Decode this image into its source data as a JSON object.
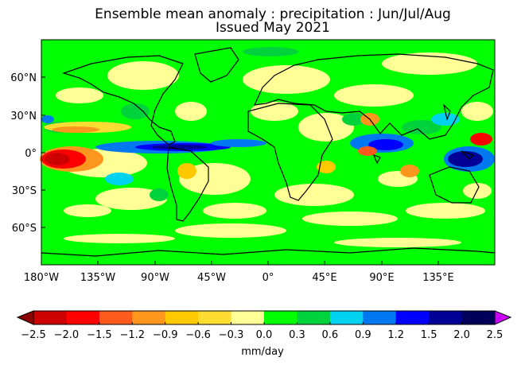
{
  "title": "Ensemble mean anomaly : precipitation : Jun/Jul/Aug",
  "subtitle": "Issued May 2021",
  "lat_labels": [
    "60°N",
    "30°N",
    "0°",
    "30°S",
    "60°S"
  ],
  "lon_labels": [
    "180°W",
    "135°W",
    "90°W",
    "45°W",
    "0°",
    "45°E",
    "90°E",
    "135°E"
  ],
  "colorbar": {
    "label": "mm/day",
    "ticks": [
      "−2.5",
      "−2.0",
      "−1.5",
      "−1.2",
      "−0.9",
      "−0.6",
      "−0.3",
      "0.0",
      "0.3",
      "0.6",
      "0.9",
      "1.2",
      "1.5",
      "2.0",
      "2.5"
    ],
    "under_color": "#8b0000",
    "over_color": "#cc00ff",
    "colors": [
      "#cc0000",
      "#ff0000",
      "#ff5a1e",
      "#ff961e",
      "#ffc800",
      "#ffdc32",
      "#ffff96",
      "#00ff00",
      "#00d23c",
      "#00d2f0",
      "#0078f0",
      "#0000ff",
      "#000096",
      "#00005a"
    ]
  },
  "map": {
    "background_color": "#00ff00",
    "dry_color": "#ffff96",
    "wet_color": "#00d23c"
  }
}
